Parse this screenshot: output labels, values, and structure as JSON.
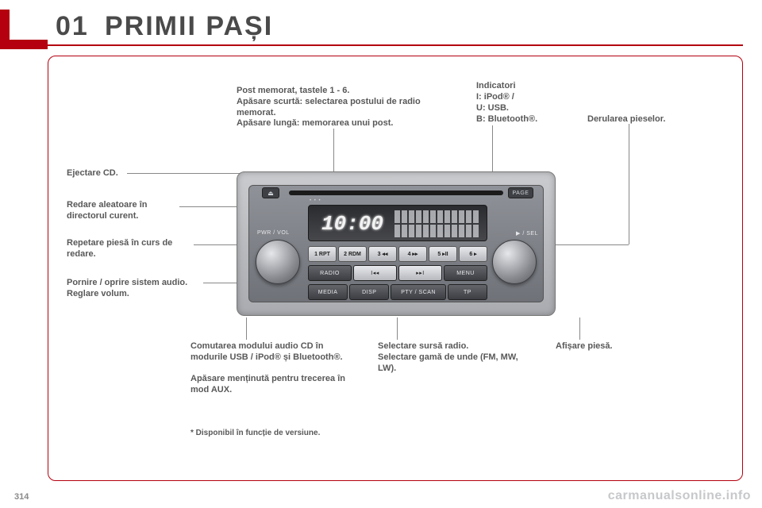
{
  "header": {
    "chapter_number": "01",
    "title": "PRIMII PAȘI",
    "accent_color": "#b4000f",
    "title_color": "#4a4a4a",
    "title_fontsize_pt": 26
  },
  "labels": {
    "eject_cd": "Ejectare CD.",
    "random_play": "Redare aleatoare în directorul curent.",
    "repeat_track": "Repetare piesă în curs de redare.",
    "power_volume": "Pornire / oprire sistem audio.\nReglare volum.",
    "preset_memory": "Post memorat, tastele 1 - 6.\nApăsare scurtă: selectarea postului de radio memorat.\nApăsare lungă: memorarea unui post.",
    "indicators_title": "Indicatori",
    "indicator_i": "I: iPod® /",
    "indicator_u": "U: USB.",
    "indicator_b": "B: Bluetooth®.",
    "scroll_tracks": "Derularea pieselor.",
    "mode_switch": "Comutarea modului audio CD în modurile USB / iPod® și Bluetooth®.\n\nApăsare menținută pentru trecerea în mod AUX.",
    "select_source": "Selectare sursă radio.\nSelectare gamă de unde (FM, MW, LW).",
    "show_track": "Afișare piesă.",
    "footnote": "* Disponibil în funcție de versiune."
  },
  "radio": {
    "eject_glyph": "⏏",
    "page_btn_label": "PAGE",
    "display": {
      "clock": "10:00",
      "seg_columns": 12,
      "seg_rows": 2,
      "background_color": "#2a2b2e",
      "text_color": "#f2f2f2"
    },
    "indicator_line": "• • •",
    "knobs": {
      "left_label": "PWR / VOL",
      "right_label": "▶ / SEL"
    },
    "presets": [
      "1 RPT",
      "2 RDM",
      "3 ◂◂",
      "4 ▸▸",
      "5 ▸II",
      "6 ▸"
    ],
    "row2": [
      "RADIO",
      "I◂◂",
      "▸▸I",
      "MENU"
    ],
    "row3": [
      "MEDIA",
      "DISP",
      "PTY / SCAN",
      "TP"
    ],
    "colors": {
      "unit_bg_top": "#c9cbce",
      "unit_bg_bottom": "#a9abb0",
      "face_bg_top": "#8f9298",
      "face_bg_bottom": "#6f7278",
      "dark_btn": "#3c3e43",
      "light_btn": "#b6b8bd"
    }
  },
  "footer": {
    "page_number": "314",
    "watermark": "carmanualsonline.info",
    "watermark_color": "#c7c8cb"
  }
}
